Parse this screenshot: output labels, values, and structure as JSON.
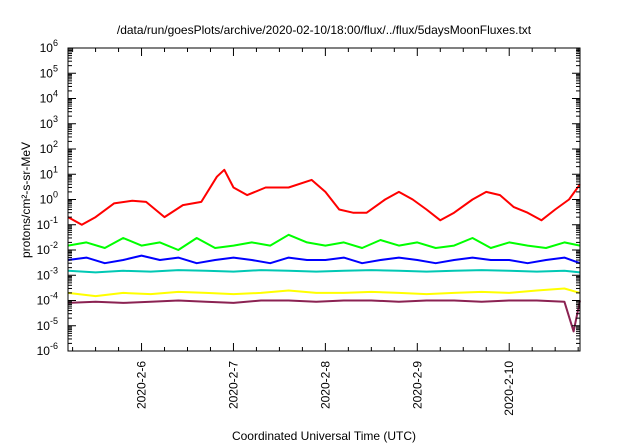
{
  "chart_data": {
    "type": "line",
    "title": "/data/run/goesPlots/archive/2020-02-10/18:00/flux/../flux/5daysMoonFluxes.txt",
    "xlabel": "Coordinated Universal Time (UTC)",
    "ylabel": "protons/cm²-s-sr-MeV",
    "y_scale": "log",
    "ylim": [
      1e-06,
      1000000.0
    ],
    "y_ticks": [
      {
        "value": 1e-06,
        "base": "10",
        "exp": "-6"
      },
      {
        "value": 1e-05,
        "base": "10",
        "exp": "-5"
      },
      {
        "value": 0.0001,
        "base": "10",
        "exp": "-4"
      },
      {
        "value": 0.001,
        "base": "10",
        "exp": "-3"
      },
      {
        "value": 0.01,
        "base": "10",
        "exp": "-2"
      },
      {
        "value": 0.1,
        "base": "10",
        "exp": "-1"
      },
      {
        "value": 1,
        "base": "10",
        "exp": "0"
      },
      {
        "value": 10,
        "base": "10",
        "exp": "1"
      },
      {
        "value": 100,
        "base": "10",
        "exp": "2"
      },
      {
        "value": 1000,
        "base": "10",
        "exp": "3"
      },
      {
        "value": 10000,
        "base": "10",
        "exp": "4"
      },
      {
        "value": 100000,
        "base": "10",
        "exp": "5"
      },
      {
        "value": 1000000,
        "base": "10",
        "exp": "6"
      }
    ],
    "x_range_days": [
      5.2,
      10.77
    ],
    "x_ticks": [
      {
        "label": "2020-2-6",
        "day": 6.0
      },
      {
        "label": "2020-2-7",
        "day": 7.0
      },
      {
        "label": "2020-2-8",
        "day": 8.0
      },
      {
        "label": "2020-2-9",
        "day": 9.0
      },
      {
        "label": "2020-2-10",
        "day": 10.0
      }
    ],
    "grid": false,
    "legend": "none",
    "series": [
      {
        "color": "#ff0000",
        "x": [
          5.2,
          5.35,
          5.5,
          5.7,
          5.9,
          6.05,
          6.25,
          6.45,
          6.65,
          6.82,
          6.9,
          7.0,
          7.15,
          7.35,
          7.6,
          7.85,
          8.0,
          8.15,
          8.3,
          8.45,
          8.65,
          8.8,
          8.95,
          9.1,
          9.25,
          9.4,
          9.6,
          9.75,
          9.9,
          10.05,
          10.2,
          10.35,
          10.5,
          10.65,
          10.77
        ],
        "y": [
          0.2,
          0.1,
          0.2,
          0.7,
          0.9,
          0.8,
          0.2,
          0.6,
          0.8,
          8,
          15,
          3,
          1.5,
          3,
          3,
          6,
          2,
          0.4,
          0.3,
          0.3,
          1,
          2,
          1,
          0.4,
          0.15,
          0.3,
          1,
          2,
          1.5,
          0.5,
          0.3,
          0.15,
          0.4,
          1,
          4
        ]
      },
      {
        "color": "#00ff00",
        "x": [
          5.2,
          5.4,
          5.6,
          5.8,
          6.0,
          6.2,
          6.4,
          6.6,
          6.8,
          7.0,
          7.2,
          7.4,
          7.6,
          7.8,
          8.0,
          8.2,
          8.4,
          8.6,
          8.8,
          9.0,
          9.2,
          9.4,
          9.6,
          9.8,
          10.0,
          10.2,
          10.4,
          10.6,
          10.77
        ],
        "y": [
          0.015,
          0.02,
          0.012,
          0.03,
          0.015,
          0.02,
          0.01,
          0.03,
          0.012,
          0.015,
          0.02,
          0.015,
          0.04,
          0.02,
          0.015,
          0.02,
          0.012,
          0.025,
          0.015,
          0.02,
          0.012,
          0.015,
          0.03,
          0.012,
          0.02,
          0.015,
          0.012,
          0.02,
          0.015
        ]
      },
      {
        "color": "#0000ff",
        "x": [
          5.2,
          5.4,
          5.6,
          5.8,
          6.0,
          6.2,
          6.4,
          6.6,
          6.8,
          7.0,
          7.2,
          7.4,
          7.6,
          7.8,
          8.0,
          8.2,
          8.4,
          8.6,
          8.8,
          9.0,
          9.2,
          9.4,
          9.6,
          9.8,
          10.0,
          10.2,
          10.4,
          10.6,
          10.77
        ],
        "y": [
          0.004,
          0.005,
          0.003,
          0.004,
          0.006,
          0.004,
          0.005,
          0.003,
          0.004,
          0.005,
          0.004,
          0.003,
          0.005,
          0.004,
          0.004,
          0.005,
          0.003,
          0.004,
          0.005,
          0.004,
          0.003,
          0.004,
          0.005,
          0.004,
          0.004,
          0.003,
          0.004,
          0.005,
          0.003
        ]
      },
      {
        "color": "#00c8b4",
        "x": [
          5.2,
          5.5,
          5.8,
          6.1,
          6.4,
          6.7,
          7.0,
          7.3,
          7.6,
          7.9,
          8.2,
          8.5,
          8.8,
          9.1,
          9.4,
          9.7,
          10.0,
          10.3,
          10.6,
          10.77
        ],
        "y": [
          0.0015,
          0.0013,
          0.0015,
          0.0014,
          0.0016,
          0.0015,
          0.0014,
          0.0016,
          0.0015,
          0.0014,
          0.0015,
          0.0016,
          0.0015,
          0.0014,
          0.0015,
          0.0016,
          0.0015,
          0.0014,
          0.0015,
          0.0013
        ]
      },
      {
        "color": "#ffff00",
        "x": [
          5.2,
          5.5,
          5.8,
          6.1,
          6.4,
          6.7,
          7.0,
          7.3,
          7.6,
          7.9,
          8.2,
          8.5,
          8.8,
          9.1,
          9.4,
          9.7,
          10.0,
          10.3,
          10.6,
          10.77
        ],
        "y": [
          0.0002,
          0.00015,
          0.0002,
          0.00018,
          0.00022,
          0.0002,
          0.00018,
          0.0002,
          0.00025,
          0.0002,
          0.0002,
          0.00022,
          0.0002,
          0.00018,
          0.0002,
          0.00022,
          0.0002,
          0.00025,
          0.0003,
          0.0002
        ]
      },
      {
        "color": "#8b2252",
        "x": [
          5.2,
          5.5,
          5.8,
          6.1,
          6.4,
          6.7,
          7.0,
          7.3,
          7.6,
          7.9,
          8.2,
          8.5,
          8.8,
          9.1,
          9.4,
          9.7,
          10.0,
          10.3,
          10.6,
          10.7,
          10.77
        ],
        "y": [
          8e-05,
          9e-05,
          8e-05,
          9e-05,
          0.0001,
          9e-05,
          8e-05,
          0.0001,
          0.0001,
          9e-05,
          0.0001,
          0.0001,
          9e-05,
          0.0001,
          0.0001,
          9e-05,
          0.0001,
          0.0001,
          9e-05,
          6e-06,
          0.0001
        ]
      }
    ]
  }
}
